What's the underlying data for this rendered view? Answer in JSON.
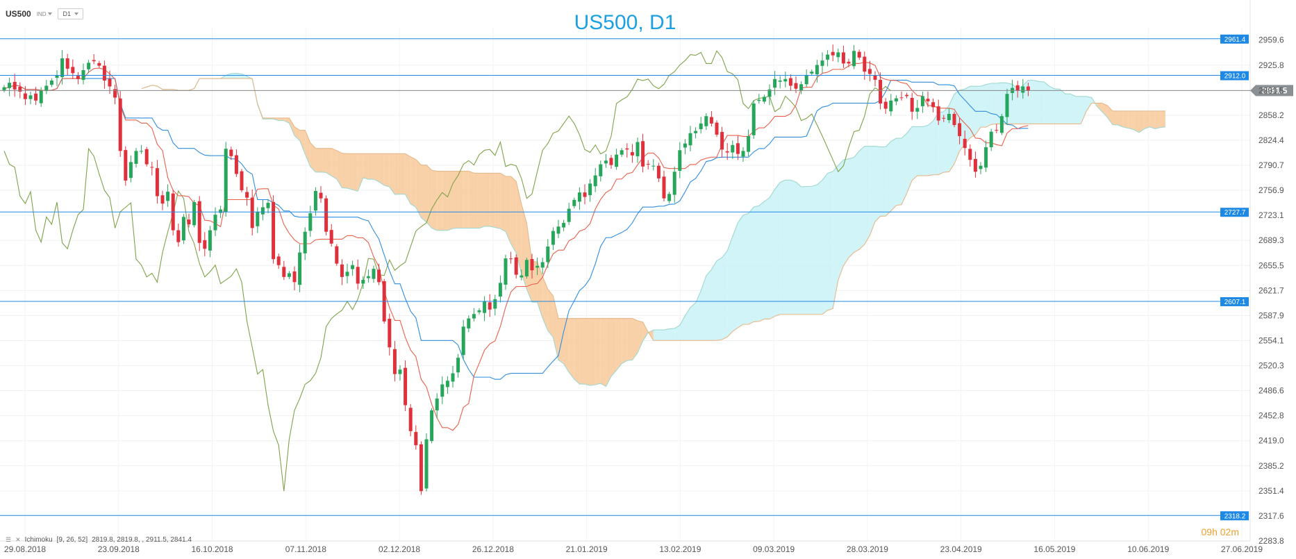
{
  "toolbar": {
    "symbol": "US500",
    "market": "IND",
    "interval": "D1"
  },
  "countdown": {
    "hours": "09",
    "h_unit": "h",
    "minutes": "02",
    "m_unit": "m"
  },
  "indicator": {
    "name": "Ichimoku",
    "params": "[9, 26, 52]",
    "values": "2819.8,  2819.8,  , 2911.5,  2841.4"
  },
  "colors": {
    "bull": "#26a65b",
    "bear": "#e0303b",
    "tenkan": "#e8604a",
    "kijun": "#2e8de0",
    "chikou": "#7fa24a",
    "cloud_up": "#c8f2f6",
    "cloud_down": "#f8c99a",
    "level": "#1e88e5",
    "price": "#888888"
  },
  "chart_data": {
    "type": "candlestick",
    "title": "US500, D1",
    "y_ticks": [
      "2959.6",
      "2925.8",
      "2891.5",
      "2858.2",
      "2824.4",
      "2790.7",
      "2756.9",
      "2723.1",
      "2689.3",
      "2655.5",
      "2621.7",
      "2587.9",
      "2554.1",
      "2520.3",
      "2486.6",
      "2452.8",
      "2419.0",
      "2385.2",
      "2351.4",
      "2317.6",
      "2283.8"
    ],
    "ylim": [
      2283.8,
      2976.2
    ],
    "x_ticks": [
      "29.08.2018",
      "23.09.2018",
      "16.10.2018",
      "07.11.2018",
      "02.12.2018",
      "26.12.2018",
      "21.01.2019",
      "13.02.2019",
      "09.03.2019",
      "28.03.2019",
      "23.04.2019",
      "16.05.2019",
      "10.06.2019",
      "27.06.2019"
    ],
    "current_price": "2891.5",
    "levels": [
      {
        "value": 2961.4,
        "label": "2961.4"
      },
      {
        "value": 2912.0,
        "label": "2912.0"
      },
      {
        "value": 2727.7,
        "label": "2727.7"
      },
      {
        "value": 2607.1,
        "label": "2607.1"
      },
      {
        "value": 2318.2,
        "label": "2318.2"
      }
    ],
    "closes": [
      2896,
      2902,
      2893,
      2890,
      2880,
      2885,
      2878,
      2892,
      2898,
      2905,
      2912,
      2935,
      2921,
      2915,
      2907,
      2919,
      2929,
      2931,
      2925,
      2905,
      2897,
      2882,
      2810,
      2770,
      2795,
      2810,
      2810,
      2792,
      2788,
      2749,
      2739,
      2755,
      2703,
      2687,
      2721,
      2711,
      2741,
      2686,
      2678,
      2703,
      2724,
      2731,
      2813,
      2803,
      2779,
      2757,
      2747,
      2706,
      2728,
      2734,
      2740,
      2664,
      2656,
      2640,
      2645,
      2633,
      2673,
      2701,
      2726,
      2756,
      2746,
      2701,
      2685,
      2658,
      2640,
      2647,
      2656,
      2631,
      2636,
      2641,
      2651,
      2633,
      2580,
      2545,
      2509,
      2515,
      2467,
      2432,
      2413,
      2351,
      2421,
      2460,
      2476,
      2495,
      2500,
      2510,
      2531,
      2573,
      2584,
      2590,
      2595,
      2607,
      2596,
      2610,
      2632,
      2665,
      2664,
      2643,
      2642,
      2663,
      2649,
      2655,
      2660,
      2681,
      2702,
      2708,
      2713,
      2732,
      2744,
      2754,
      2748,
      2766,
      2777,
      2792,
      2797,
      2791,
      2805,
      2811,
      2812,
      2804,
      2822,
      2789,
      2792,
      2790,
      2773,
      2746,
      2752,
      2782,
      2811,
      2820,
      2834,
      2837,
      2847,
      2857,
      2847,
      2832,
      2812,
      2808,
      2818,
      2806,
      2810,
      2830,
      2874,
      2879,
      2883,
      2893,
      2907,
      2905,
      2907,
      2898,
      2894,
      2900,
      2912,
      2917,
      2926,
      2932,
      2940,
      2939,
      2943,
      2928,
      2928,
      2945,
      2936,
      2917,
      2914,
      2906,
      2874,
      2867,
      2878,
      2881,
      2882,
      2884,
      2863,
      2868,
      2884,
      2877,
      2869,
      2851,
      2854,
      2860,
      2845,
      2830,
      2814,
      2798,
      2782,
      2790,
      2815,
      2836,
      2838,
      2857,
      2887,
      2895,
      2891,
      2897,
      2891
    ]
  }
}
